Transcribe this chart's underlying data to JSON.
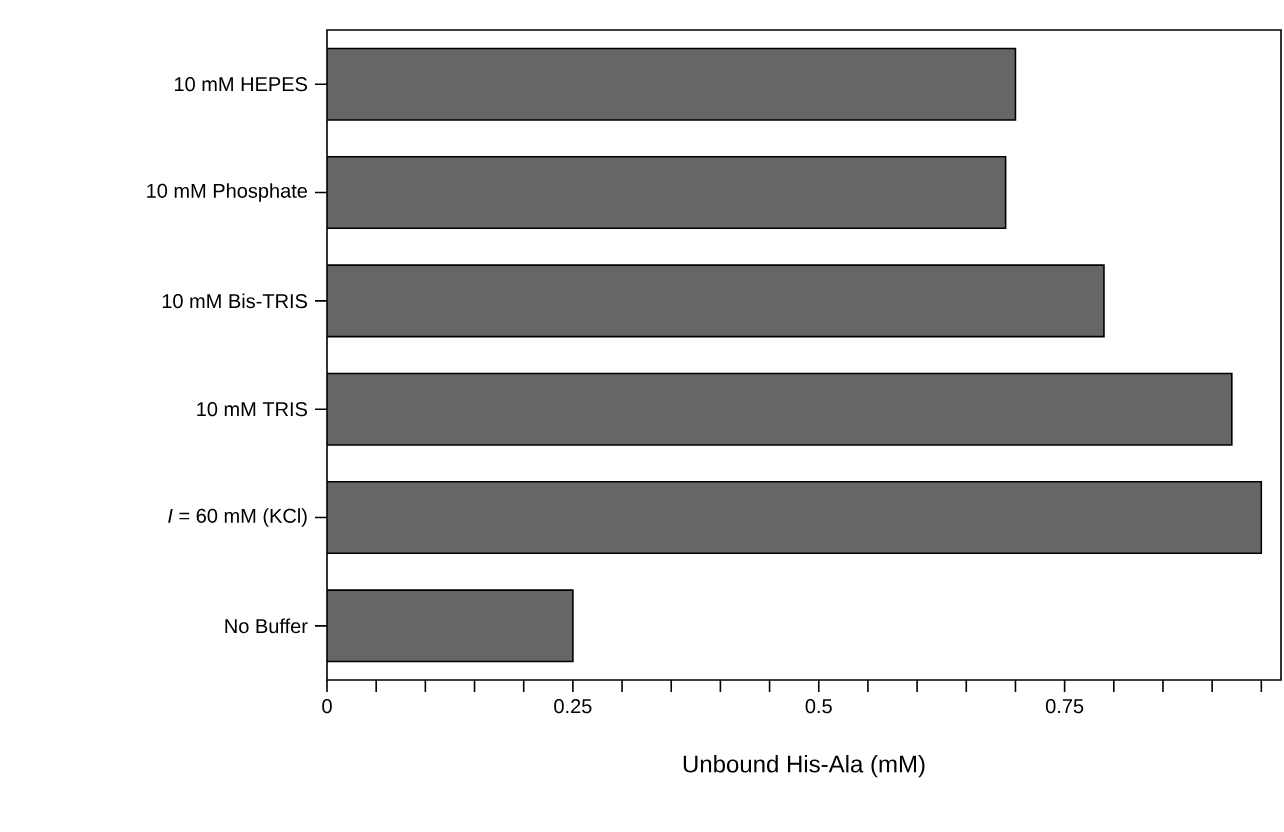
{
  "chart_data": {
    "type": "bar",
    "orientation": "horizontal",
    "xlabel": "Unbound His-Ala (mM)",
    "categories": [
      "10 mM HEPES",
      "10 mM Phosphate",
      "10 mM Bis-TRIS",
      "10 mM TRIS",
      "*I* = 60 mM (KCl)",
      "No Buffer"
    ],
    "values": [
      0.7,
      0.69,
      0.79,
      0.92,
      0.95,
      0.25
    ],
    "color": "#666666",
    "xlim": [
      0,
      0.97
    ],
    "xticks": [
      0,
      {
        "value": 0.05,
        "label": null
      },
      {
        "value": 0.1,
        "label": null
      },
      {
        "value": 0.15,
        "label": null
      },
      {
        "value": 0.2,
        "label": null
      },
      0.25,
      {
        "value": 0.3,
        "label": null
      },
      {
        "value": 0.35,
        "label": null
      },
      {
        "value": 0.4,
        "label": null
      },
      {
        "value": 0.45,
        "label": null
      },
      0.5,
      {
        "value": 0.55,
        "label": null
      },
      {
        "value": 0.6,
        "label": null
      },
      {
        "value": 0.65,
        "label": null
      },
      {
        "value": 0.7,
        "label": null
      },
      0.75,
      {
        "value": 0.8,
        "label": null
      },
      {
        "value": 0.85,
        "label": null
      },
      {
        "value": 0.9,
        "label": null
      },
      {
        "value": 0.95,
        "label": null
      }
    ]
  }
}
